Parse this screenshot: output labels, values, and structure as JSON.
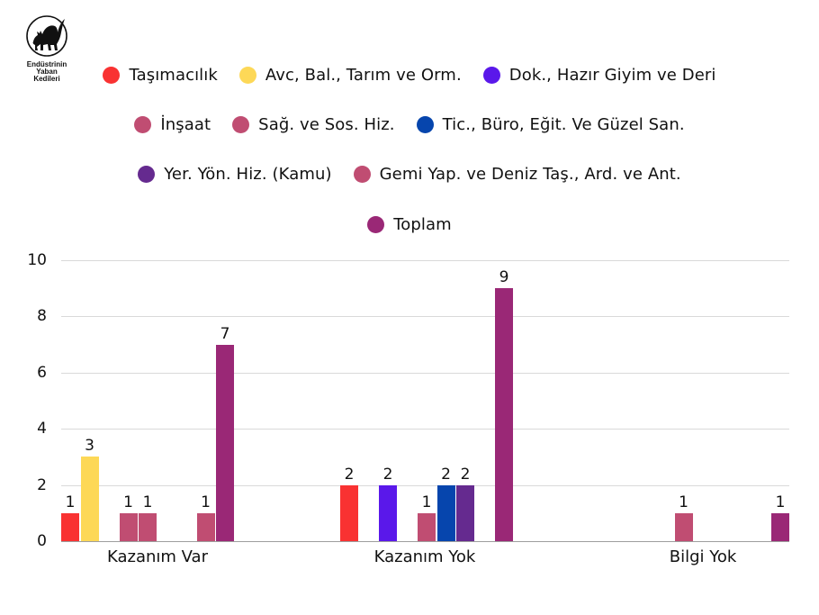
{
  "logo": {
    "icon": "black-cat-icon",
    "lines": [
      "Endüstrinin",
      "Yaban",
      "Kedileri"
    ]
  },
  "legend": {
    "rows": [
      [
        {
          "label": "Taşımacılık",
          "color": "#f93232"
        },
        {
          "label": "Avc, Bal., Tarım ve Orm.",
          "color": "#fdd857"
        },
        {
          "label": "Dok., Hazır Giyim ve Deri",
          "color": "#5a18ea"
        }
      ],
      [
        {
          "label": "İnşaat",
          "color": "#c04d72"
        },
        {
          "label": "Sağ. ve Sos. Hiz.",
          "color": "#c04d72"
        },
        {
          "label": "Tic., Büro, Eğit. Ve Güzel San.",
          "color": "#0645ad"
        }
      ],
      [
        {
          "label": "Yer. Yön. Hiz. (Kamu)",
          "color": "#652a8f"
        },
        {
          "label": "Gemi Yap. ve Deniz Taş., Ard. ve Ant.",
          "color": "#c04d72"
        }
      ],
      [
        {
          "label": "Toplam",
          "color": "#9a2876"
        }
      ]
    ]
  },
  "chart_data": {
    "type": "bar",
    "title": "",
    "xlabel": "",
    "ylabel": "",
    "ylim": [
      0,
      10
    ],
    "yticks": [
      0,
      2,
      4,
      6,
      8,
      10
    ],
    "grid": true,
    "legend_position": "top",
    "categories": [
      "Kazanım Var",
      "Kazanım Yok",
      "Bilgi Yok"
    ],
    "series": [
      {
        "name": "Taşımacılık",
        "color": "#f93232",
        "values": [
          1,
          2,
          0
        ]
      },
      {
        "name": "Avc, Bal., Tarım ve Orm.",
        "color": "#fdd857",
        "values": [
          3,
          0,
          0
        ]
      },
      {
        "name": "Dok., Hazır Giyim ve Deri",
        "color": "#5a18ea",
        "values": [
          0,
          2,
          0
        ]
      },
      {
        "name": "İnşaat",
        "color": "#c04d72",
        "values": [
          1,
          0,
          1
        ]
      },
      {
        "name": "Sağ. ve Sos. Hiz.",
        "color": "#c04d72",
        "values": [
          1,
          1,
          0
        ]
      },
      {
        "name": "Tic., Büro, Eğit. Ve Güzel San.",
        "color": "#0645ad",
        "values": [
          0,
          2,
          0
        ]
      },
      {
        "name": "Yer. Yön. Hiz. (Kamu)",
        "color": "#652a8f",
        "values": [
          0,
          2,
          0
        ]
      },
      {
        "name": "Gemi Yap. ve Deniz Taş., Ard. ve Ant.",
        "color": "#c04d72",
        "values": [
          1,
          0,
          0
        ]
      },
      {
        "name": "Toplam",
        "color": "#9a2876",
        "values": [
          7,
          9,
          1
        ]
      }
    ]
  }
}
